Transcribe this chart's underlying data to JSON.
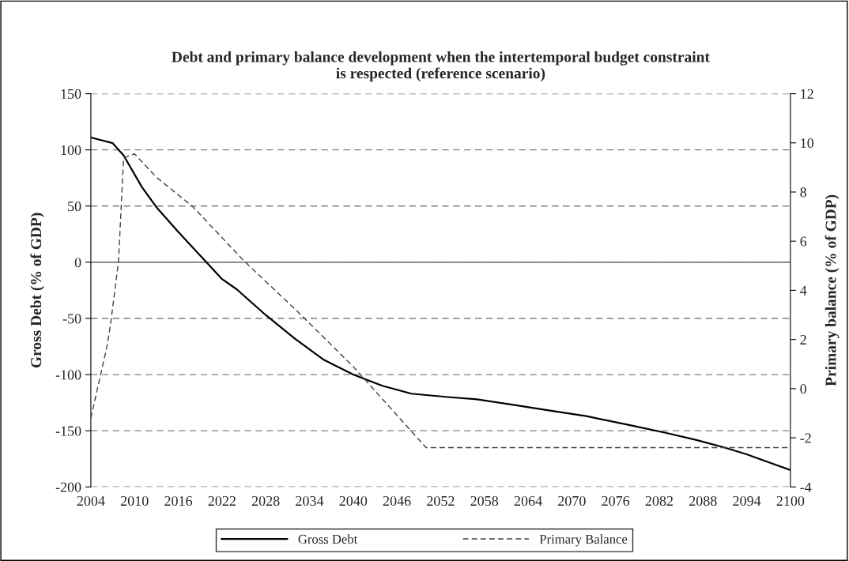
{
  "chart_data": {
    "type": "line",
    "title": "Debt and primary balance development when the intertemporal budget constraint\nis respected (reference scenario)",
    "ylabel": "Gross Debt (% of GDP)",
    "y2label": "Primary balance (% of GDP)",
    "series": [
      {
        "name": "Gross Debt",
        "color": "#000000",
        "line_style": "solid",
        "x": [
          2004,
          2007,
          2008.5,
          2011,
          2013,
          2016,
          2020,
          2022,
          2024,
          2028,
          2032,
          2036,
          2040,
          2044,
          2048,
          2053,
          2057,
          2062,
          2067,
          2072,
          2078,
          2083,
          2087,
          2091,
          2094,
          2097,
          2100
        ],
        "values": [
          111,
          106,
          95,
          67,
          49,
          27,
          -1,
          -15,
          -24,
          -47,
          -68,
          -87,
          -100,
          -110,
          -117,
          -120,
          -122,
          -127,
          -132,
          -137,
          -145,
          -152,
          -158,
          -165,
          -171,
          -178,
          -185
        ]
      },
      {
        "name": "Primary Balance",
        "color": "#404040",
        "line_style": "dashed",
        "axis": "y2",
        "x": [
          2004,
          2006.2,
          2006.7,
          2007.8,
          2008.5,
          2010,
          2013,
          2018,
          2025,
          2032.5,
          2040,
          2050,
          2100
        ],
        "values": [
          -1.2,
          1.7,
          2.6,
          5.2,
          9.4,
          9.55,
          8.6,
          7.4,
          5.2,
          3.1,
          0.9,
          -2.4,
          -2.4
        ]
      }
    ],
    "xlim": [
      2004,
      2100
    ],
    "xticks": [
      2004,
      2010,
      2016,
      2022,
      2028,
      2034,
      2040,
      2046,
      2052,
      2058,
      2064,
      2070,
      2076,
      2082,
      2088,
      2094,
      2100
    ],
    "ylim": [
      -200,
      150
    ],
    "yticks": [
      -200,
      -150,
      -100,
      -50,
      0,
      50,
      100,
      150
    ],
    "y2lim": [
      -4,
      12
    ],
    "y2ticks": [
      -4,
      -2,
      0,
      2,
      4,
      6,
      8,
      10,
      12
    ],
    "grid": "y",
    "ref_lines": [
      {
        "axis": "y",
        "value": 0,
        "color": "#808080",
        "line_style": "solid"
      }
    ],
    "legend": "bottom"
  }
}
